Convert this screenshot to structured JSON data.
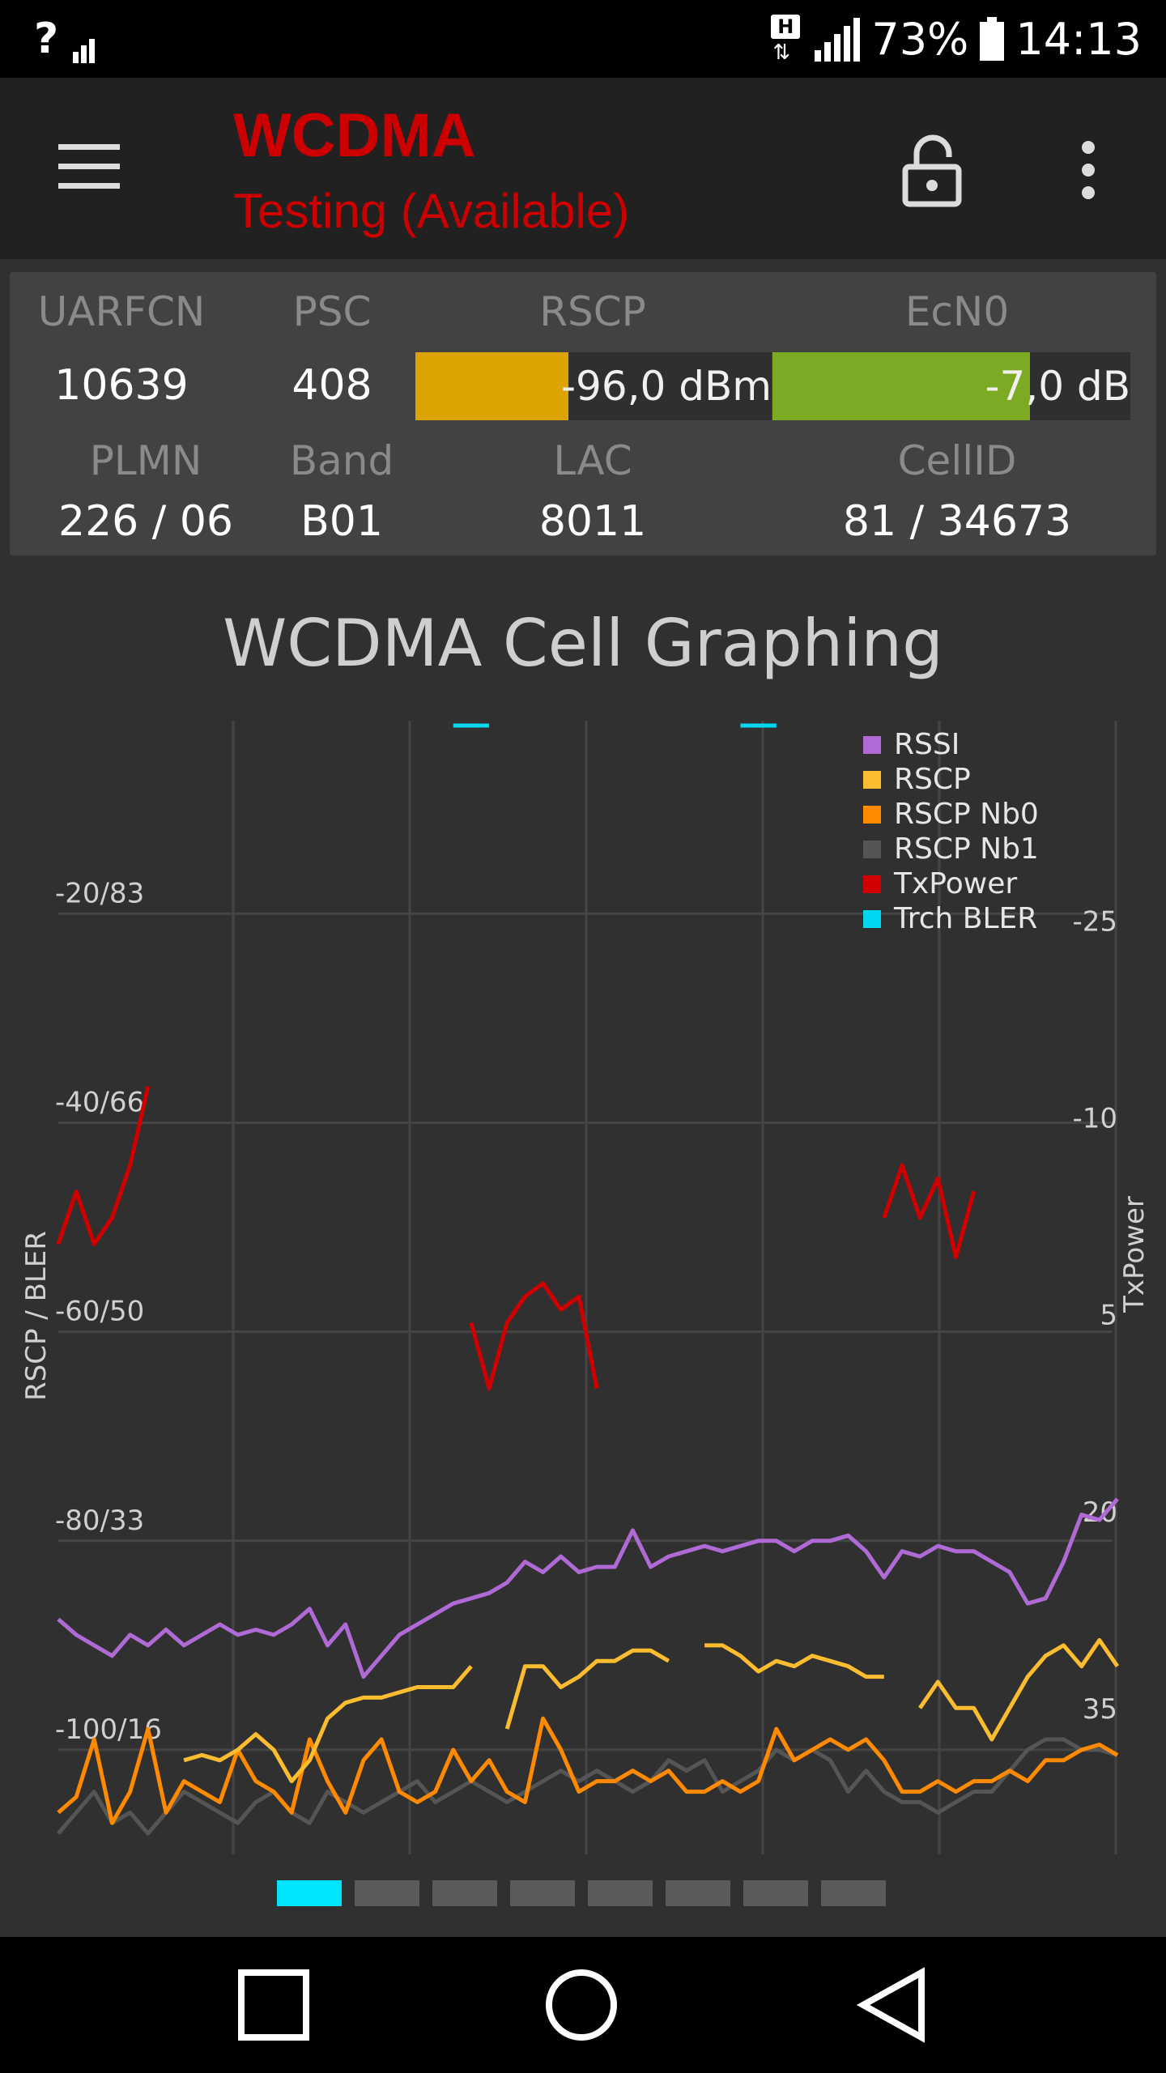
{
  "status_bar": {
    "signal_text": "?",
    "battery_percent": "73%",
    "time": "14:13",
    "network_badge": "H"
  },
  "app_bar": {
    "title": "WCDMA",
    "subtitle": "Testing (Available)",
    "menu_icon": "hamburger-icon",
    "lock_icon": "unlock-icon",
    "more_icon": "more-vert-icon"
  },
  "cell_info": {
    "labels": {
      "uarfcn": "UARFCN",
      "psc": "PSC",
      "rscp": "RSCP",
      "ecn0": "EcN0",
      "plmn": "PLMN",
      "band": "Band",
      "lac": "LAC",
      "cellid": "CellID"
    },
    "values": {
      "uarfcn": "10639",
      "psc": "408",
      "rscp": "-96,0 dBm",
      "ecn0": "-7,0 dB",
      "plmn": "226 / 06",
      "band": "B01",
      "lac": "8011",
      "cellid": "81 / 34673"
    },
    "rscp_level": 0.43,
    "ecn0_level": 0.72,
    "rscp_color": "#dca400",
    "ecn0_color": "#7caa22"
  },
  "chart": {
    "title": "WCDMA Cell Graphing",
    "left_axis_label": "RSCP / BLER",
    "right_axis_label": "TxPower",
    "left_ticks": [
      "-20/83",
      "-40/66",
      "-60/50",
      "-80/33",
      "-100/16"
    ],
    "right_ticks": [
      "-25",
      "-10",
      "5",
      "20",
      "35"
    ],
    "legend": [
      {
        "name": "RSSI",
        "color": "#b06ad6"
      },
      {
        "name": "RSCP",
        "color": "#fbbc30"
      },
      {
        "name": "RSCP Nb0",
        "color": "#ff8a00"
      },
      {
        "name": "RSCP Nb1",
        "color": "#555555"
      },
      {
        "name": "TxPower",
        "color": "#d00000"
      },
      {
        "name": "Trch BLER",
        "color": "#00d8f0"
      }
    ]
  },
  "chart_data": {
    "type": "line",
    "title": "WCDMA Cell Graphing",
    "ylabel": "RSCP / BLER",
    "y2label": "TxPower",
    "ylim": [
      -110,
      -2
    ],
    "y_ticks": [
      "-20/83",
      "-40/66",
      "-60/50",
      "-80/33",
      "-100/16"
    ],
    "y2_ticks": [
      "-25",
      "-10",
      "5",
      "20",
      "35"
    ],
    "y2lim": [
      -41.5,
      44.5
    ],
    "x_count": 60,
    "grid": true,
    "legend_position": "top-right",
    "series": [
      {
        "name": "RSSI",
        "axis": "left",
        "values": [
          -87.5,
          -89,
          -90,
          -91,
          -89,
          -90,
          -88.5,
          -90,
          -89,
          -88,
          -89,
          -88.5,
          -89,
          -88,
          -86.5,
          -90,
          -88,
          -93,
          -91,
          -89,
          -88,
          -87,
          -86,
          -85.5,
          -85,
          -84,
          -82,
          -83,
          -81.5,
          -83,
          -82.5,
          -82.5,
          -79,
          -82.5,
          -81.5,
          -81,
          -80.5,
          -81,
          -80.5,
          -80,
          -80,
          -81,
          -80,
          -80,
          -79.5,
          -81,
          -83.5,
          -81,
          -81.5,
          -80.5,
          -81,
          -81,
          -82,
          -83,
          -86,
          -85.5,
          -82,
          -77.5,
          -78,
          -76
        ]
      },
      {
        "name": "RSCP",
        "axis": "left",
        "values": [
          null,
          null,
          null,
          null,
          null,
          null,
          null,
          -101,
          -100.5,
          -101,
          -100,
          -98.5,
          -100,
          -103,
          -101,
          -97,
          -95.5,
          -95,
          -95,
          -94.5,
          -94,
          -94,
          -94,
          -92,
          null,
          -98,
          -92,
          -92,
          -94,
          -93,
          -91.5,
          -91.5,
          -90.5,
          -90.5,
          -91.5,
          null,
          -90,
          -90,
          -91,
          -92.5,
          -91.5,
          -92,
          -91,
          -91.5,
          -92,
          -93,
          -93,
          null,
          -96,
          -93.5,
          -96,
          -96,
          -99,
          -96,
          -93,
          -91,
          -90,
          -92,
          -89.5,
          -92
        ]
      },
      {
        "name": "RSCP Nb0",
        "axis": "left",
        "values": [
          -106,
          -104.5,
          -99,
          -107,
          -104,
          -98,
          -106,
          -103,
          -104,
          -105,
          -100,
          -103,
          -104,
          -106,
          -99,
          -103,
          -106,
          -101,
          -99,
          -104,
          -105,
          -104,
          -100,
          -103,
          -101,
          -104,
          -105,
          -97,
          -100,
          -104,
          -103,
          -103,
          -102,
          -103,
          -102,
          -104,
          -104,
          -103,
          -104,
          -103,
          -98,
          -101,
          -100,
          -99,
          -100,
          -99,
          -101,
          -104,
          -104,
          -103,
          -104,
          -103,
          -103,
          -102,
          -103,
          -101,
          -101,
          -100,
          -99.5,
          -100.5
        ]
      },
      {
        "name": "RSCP Nb1",
        "axis": "left",
        "values": [
          -108,
          -106,
          -104,
          -107,
          -106,
          -108,
          -106,
          -104,
          -105,
          -106,
          -107,
          -105,
          -104,
          -106,
          -107,
          -104,
          -105,
          -106,
          -105,
          -104,
          -103,
          -105,
          -104,
          -103,
          -104,
          -105,
          -104,
          -103,
          -102,
          -103,
          -102,
          -103,
          -104,
          -103,
          -101,
          -102,
          -101,
          -104,
          -103,
          -102,
          -100,
          -101,
          -100,
          -101,
          -104,
          -102,
          -104,
          -105,
          -105,
          -106,
          -105,
          -104,
          -104,
          -102,
          -100,
          -99,
          -99,
          -100,
          -100,
          -100.5
        ]
      },
      {
        "name": "TxPower",
        "axis": "right",
        "values": [
          -2,
          -6,
          -2,
          -4,
          -8,
          -14,
          null,
          null,
          null,
          null,
          null,
          null,
          null,
          null,
          null,
          null,
          null,
          null,
          null,
          null,
          null,
          null,
          null,
          4,
          9,
          4,
          2,
          1,
          3,
          2,
          9,
          null,
          null,
          null,
          null,
          null,
          null,
          null,
          null,
          null,
          null,
          null,
          null,
          null,
          null,
          null,
          -4,
          -8,
          -4,
          -7,
          -1,
          -6,
          null,
          null,
          null,
          null,
          null,
          null,
          null,
          null
        ]
      },
      {
        "name": "Trch BLER",
        "axis": "left",
        "values": [
          null,
          null,
          null,
          null,
          null,
          null,
          null,
          null,
          null,
          null,
          null,
          null,
          null,
          null,
          null,
          null,
          null,
          null,
          null,
          null,
          null,
          null,
          97,
          0,
          0,
          null,
          null,
          null,
          null,
          null,
          null,
          null,
          null,
          null,
          null,
          null,
          null,
          null,
          97,
          0,
          0,
          null,
          null,
          null,
          null,
          null,
          null,
          null,
          null,
          null,
          null,
          null,
          null,
          null,
          null,
          null,
          null,
          null,
          null,
          null
        ]
      }
    ]
  },
  "pager": {
    "count": 8,
    "active_index": 0
  },
  "nav_bar": {
    "recents_icon": "square-icon",
    "home_icon": "circle-icon",
    "back_icon": "triangle-back-icon"
  }
}
